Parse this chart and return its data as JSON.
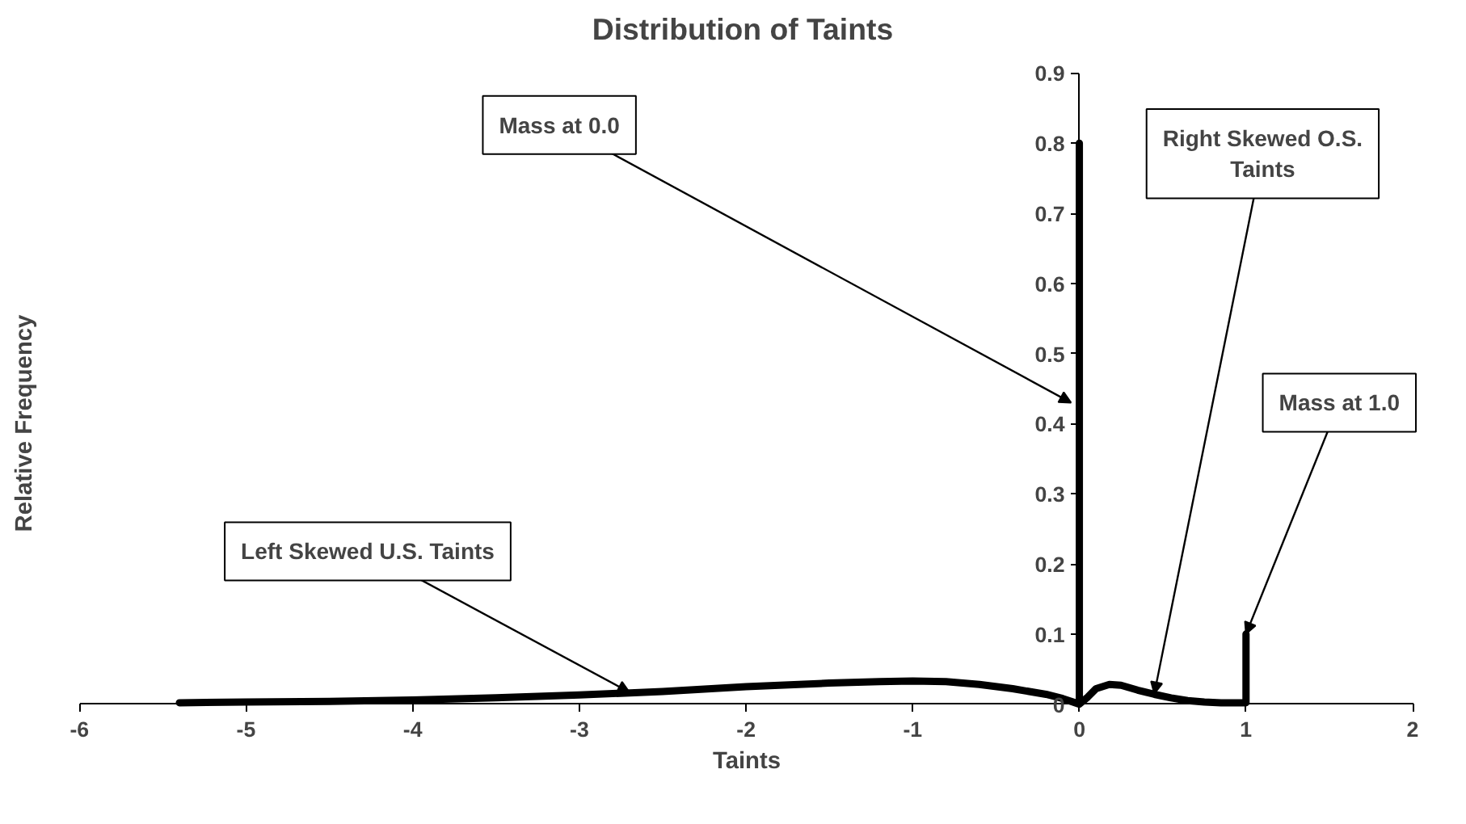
{
  "chart_data": {
    "type": "line",
    "title": "Distribution of Taints",
    "xlabel": "Taints",
    "ylabel": "Relative Frequency",
    "x": [
      -5.4,
      -5,
      -4.5,
      -4,
      -3.5,
      -3,
      -2.5,
      -2,
      -1.5,
      -1.2,
      -1,
      -0.8,
      -0.6,
      -0.4,
      -0.2,
      -0.1,
      0,
      0,
      0,
      0.05,
      0.1,
      0.18,
      0.25,
      0.35,
      0.45,
      0.55,
      0.65,
      0.75,
      0.85,
      1,
      1
    ],
    "series": [
      {
        "color": "#000000",
        "values": [
          0.002,
          0.003,
          0.004,
          0.006,
          0.009,
          0.013,
          0.018,
          0.025,
          0.03,
          0.032,
          0.033,
          0.032,
          0.028,
          0.022,
          0.014,
          0.008,
          0.0,
          0.8,
          0.0,
          0.01,
          0.022,
          0.028,
          0.027,
          0.02,
          0.014,
          0.009,
          0.005,
          0.003,
          0.002,
          0.002,
          0.1
        ]
      }
    ],
    "annotations": [
      {
        "text": "Left Skewed U.S. Taints",
        "x": -2.7,
        "y": 0.017
      },
      {
        "text": "Mass at 0.0",
        "x": -0.05,
        "y": 0.43
      },
      {
        "text": "Right Skewed O.S. Taints",
        "x": 0.45,
        "y": 0.015
      },
      {
        "text": "Mass at 1.0",
        "x": 1,
        "y": 0.1
      }
    ],
    "xlim": [
      -6,
      2
    ],
    "ylim": [
      0,
      0.9
    ],
    "xticks": [
      -6,
      -5,
      -4,
      -3,
      -2,
      -1,
      0,
      1,
      2
    ],
    "yticks": [
      0,
      0.1,
      0.2,
      0.3,
      0.4,
      0.5,
      0.6,
      0.7,
      0.8,
      0.9
    ]
  }
}
